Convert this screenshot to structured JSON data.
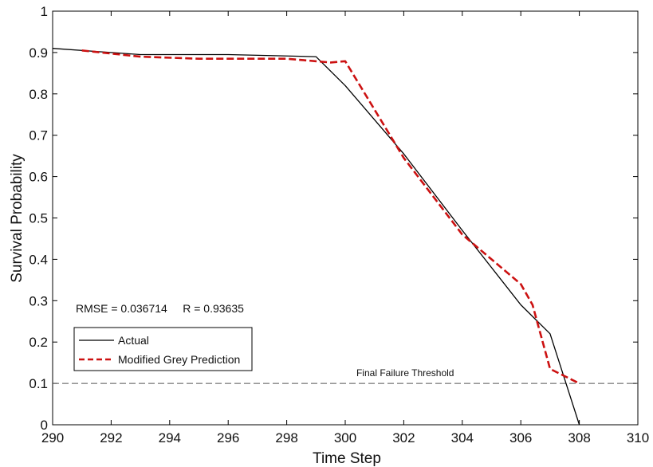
{
  "chart_data": {
    "type": "line",
    "title": "",
    "xlabel": "Time Step",
    "ylabel": "Survival Probability",
    "xlim": [
      290,
      310
    ],
    "ylim": [
      0,
      1
    ],
    "xticks": [
      290,
      292,
      294,
      296,
      298,
      300,
      302,
      304,
      306,
      308,
      310
    ],
    "yticks": [
      0,
      0.1,
      0.2,
      0.3,
      0.4,
      0.5,
      0.6,
      0.7,
      0.8,
      0.9,
      1
    ],
    "grid": false,
    "legend_position": "lower-left",
    "series": [
      {
        "name": "Actual",
        "color": "#000000",
        "style": "solid",
        "x": [
          290,
          293,
          296,
          299,
          300,
          302,
          304,
          306,
          307,
          308
        ],
        "y": [
          0.91,
          0.895,
          0.895,
          0.89,
          0.82,
          0.655,
          0.47,
          0.29,
          0.22,
          0.0
        ]
      },
      {
        "name": "Modified Grey Prediction",
        "color": "#cc1111",
        "style": "dashed",
        "x": [
          291,
          293,
          295,
          298,
          299.5,
          300,
          302,
          304,
          306,
          306.4,
          307,
          308
        ],
        "y": [
          0.905,
          0.89,
          0.885,
          0.885,
          0.876,
          0.879,
          0.645,
          0.46,
          0.34,
          0.29,
          0.135,
          0.1
        ]
      }
    ],
    "reference_lines": [
      {
        "label": "Final Failure Threshold",
        "y": 0.1,
        "color": "#555555",
        "style": "dashed"
      }
    ],
    "annotations": [
      "RMSE = 0.036714     R = 0.93635"
    ]
  }
}
